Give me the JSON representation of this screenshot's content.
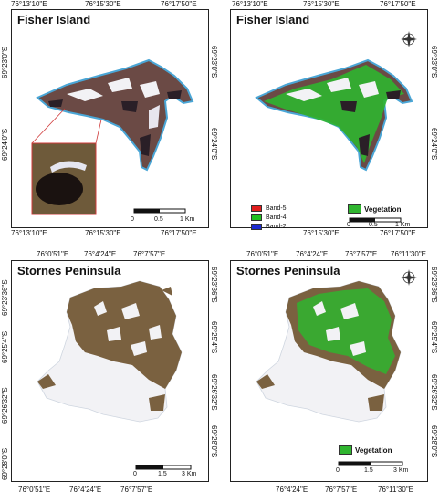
{
  "panels": {
    "top_left": {
      "title": "Fisher Island"
    },
    "top_right": {
      "title": "Fisher Island"
    },
    "bottom_left": {
      "title": "Stornes Peninsula"
    },
    "bottom_right": {
      "title": "Stornes Peninsula"
    }
  },
  "fisher_coords": {
    "lon": [
      "76°13'10\"E",
      "76°15'30\"E",
      "76°17'50\"E"
    ],
    "lat": [
      "69°23'0\"S",
      "69°24'0\"S"
    ]
  },
  "stornes_coords": {
    "lon": [
      "76°0'51\"E",
      "76°4'24\"E",
      "76°7'57\"E",
      "76°11'30\"E"
    ],
    "lat": [
      "69°23'36\"S",
      "69°25'4\"S",
      "69°26'32\"S",
      "69°28'0\"S"
    ]
  },
  "band_legend": [
    {
      "label": "Band-5",
      "color": "#e11d1d"
    },
    {
      "label": "Band-4",
      "color": "#22c022"
    },
    {
      "label": "Band-2",
      "color": "#1c2bd1"
    }
  ],
  "vegetation_legend": {
    "label": "Vegetation",
    "color": "#2fb52f"
  },
  "fisher_scale": [
    "0",
    "0.5",
    "1 Km"
  ],
  "stornes_scale": [
    "0",
    "1.5",
    "3 Km"
  ],
  "colors": {
    "rock": "#6b4a45",
    "rock_dark": "#2a1f27",
    "snow": "#f2f2f5",
    "coast": "#4aa6d6",
    "vegetation": "#2fb52f",
    "sediment": "#7a6140"
  }
}
